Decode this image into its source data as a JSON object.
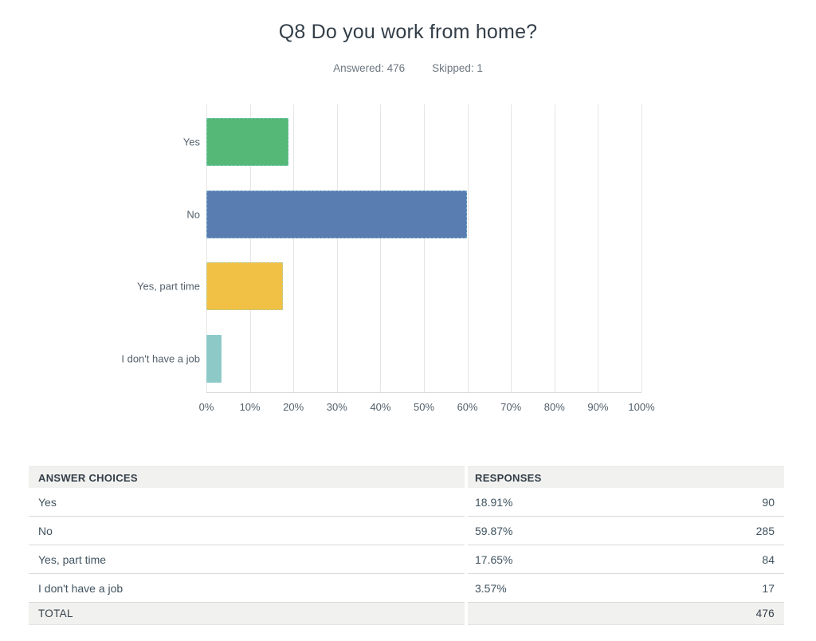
{
  "title": "Q8 Do you work from home?",
  "meta": {
    "answered": "Answered: 476",
    "skipped": "Skipped: 1"
  },
  "chart_data": {
    "type": "bar",
    "orientation": "horizontal",
    "title": "Q8 Do you work from home?",
    "categories": [
      "Yes",
      "No",
      "Yes, part time",
      "I don't have a job"
    ],
    "values": [
      18.91,
      59.87,
      17.65,
      3.57
    ],
    "counts": [
      90,
      285,
      84,
      17
    ],
    "bar_colors": [
      "#55b876",
      "#5a7db1",
      "#f0c145",
      "#8dc9c6"
    ],
    "x_ticks": [
      "0%",
      "10%",
      "20%",
      "30%",
      "40%",
      "50%",
      "60%",
      "70%",
      "80%",
      "90%",
      "100%"
    ],
    "xlim": [
      0,
      100
    ],
    "grid": true,
    "legend": "none"
  },
  "table": {
    "headers": [
      "ANSWER CHOICES",
      "RESPONSES"
    ],
    "rows": [
      {
        "choice": "Yes",
        "percent": "18.91%",
        "count": "90"
      },
      {
        "choice": "No",
        "percent": "59.87%",
        "count": "285"
      },
      {
        "choice": "Yes, part time",
        "percent": "17.65%",
        "count": "84"
      },
      {
        "choice": "I don't have a job",
        "percent": "3.57%",
        "count": "17"
      }
    ],
    "total_label": "TOTAL",
    "total_count": "476"
  }
}
